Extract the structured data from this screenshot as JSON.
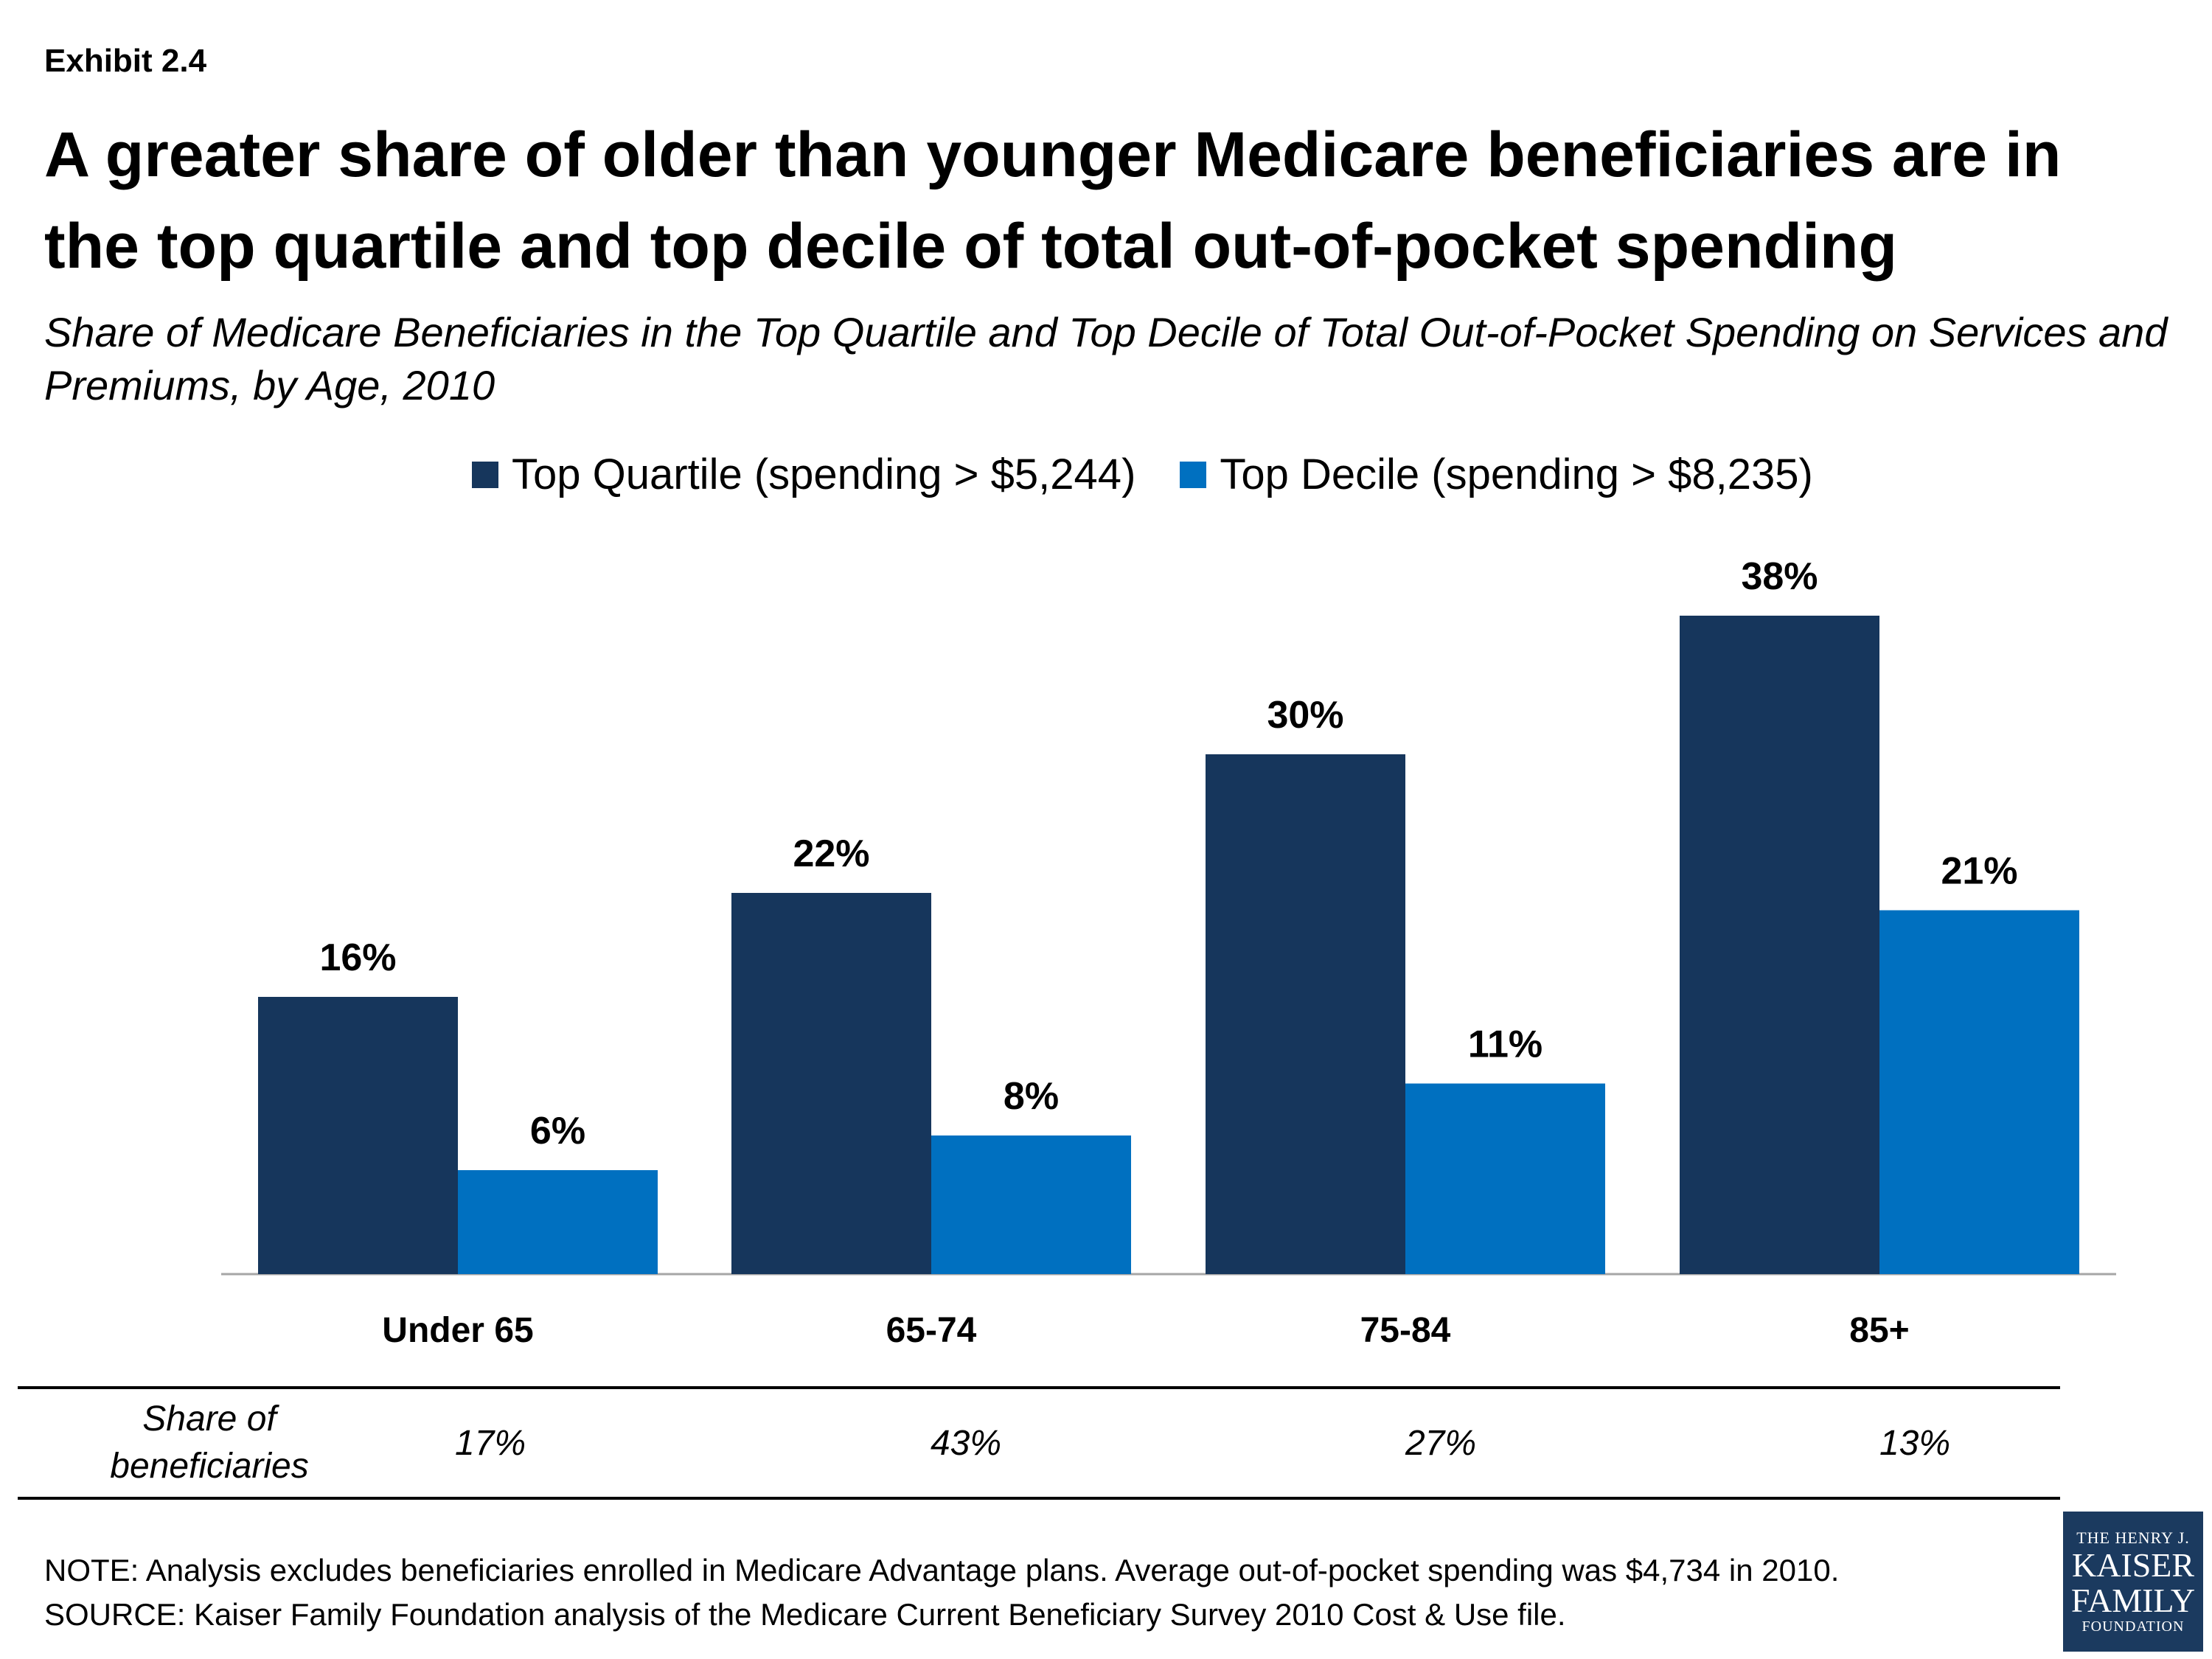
{
  "exhibit": "Exhibit 2.4",
  "title": "A greater share of older than younger Medicare beneficiaries are in the top quartile and top decile of total out-of-pocket spending",
  "subtitle": "Share of Medicare Beneficiaries in the Top Quartile and Top Decile of Total Out-of-Pocket Spending on Services and Premiums, by Age, 2010",
  "legend": [
    {
      "label": "Top Quartile (spending > $5,244)",
      "color": "#16365c"
    },
    {
      "label": "Top Decile (spending > $8,235)",
      "color": "#0070c0"
    }
  ],
  "chart_data": {
    "type": "bar",
    "categories": [
      "Under 65",
      "65-74",
      "75-84",
      "85+"
    ],
    "series": [
      {
        "name": "Top Quartile (spending > $5,244)",
        "values": [
          16,
          22,
          30,
          38
        ],
        "labels": [
          "16%",
          "22%",
          "30%",
          "38%"
        ],
        "color": "#16365c"
      },
      {
        "name": "Top Decile (spending > $8,235)",
        "values": [
          6,
          8,
          11,
          21
        ],
        "labels": [
          "6%",
          "8%",
          "11%",
          "21%"
        ],
        "color": "#0070c0"
      }
    ],
    "ylim": [
      0,
      40
    ],
    "grid": false,
    "legend_position": "top"
  },
  "share_table": {
    "label": "Share of beneficiaries",
    "values": [
      "17%",
      "43%",
      "27%",
      "13%"
    ]
  },
  "footer": {
    "note": "NOTE: Analysis excludes beneficiaries enrolled in Medicare Advantage plans. Average out-of-pocket spending was $4,734 in 2010.",
    "source": "SOURCE: Kaiser Family Foundation analysis of the Medicare Current Beneficiary Survey 2010 Cost & Use file."
  },
  "logo": {
    "line1": "THE HENRY J.",
    "line2a": "KAISER",
    "line2b": "FAMILY",
    "line3": "FOUNDATION"
  }
}
